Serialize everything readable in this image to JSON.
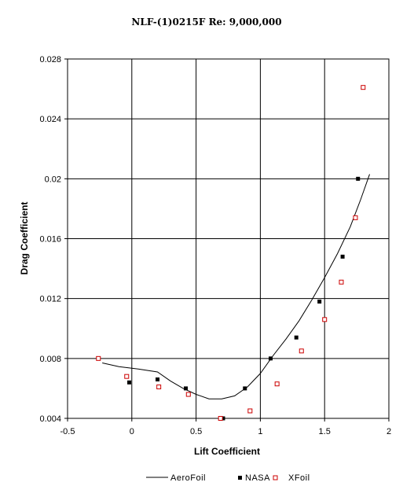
{
  "chart_data": {
    "type": "scatter",
    "title": "NLF-(1)0215F Re: 9,000,000",
    "xlabel": "Lift Coefficient",
    "ylabel": "Drag Coefficient",
    "xlim": [
      -0.5,
      2
    ],
    "ylim": [
      0.004,
      0.028
    ],
    "x_ticks": [
      -0.5,
      0,
      0.5,
      1,
      1.5,
      2
    ],
    "x_tick_labels": [
      "-0.5",
      "0",
      "0.5",
      "1",
      "1.5",
      "2"
    ],
    "y_ticks": [
      0.004,
      0.008,
      0.012,
      0.016,
      0.02,
      0.024,
      0.028
    ],
    "y_tick_labels": [
      "0.004",
      "0.008",
      "0.012",
      "0.016",
      "0.02",
      "0.024",
      "0.028"
    ],
    "grid": true,
    "legend_position": "bottom",
    "series": [
      {
        "name": "AeroFoil",
        "kind": "line",
        "color": "#000000",
        "points": [
          [
            -0.23,
            0.0077
          ],
          [
            -0.1,
            0.00745
          ],
          [
            0.05,
            0.0073
          ],
          [
            0.2,
            0.0071
          ],
          [
            0.3,
            0.0065
          ],
          [
            0.4,
            0.006
          ],
          [
            0.5,
            0.0056
          ],
          [
            0.6,
            0.0053
          ],
          [
            0.7,
            0.0053
          ],
          [
            0.8,
            0.0055
          ],
          [
            0.9,
            0.0061
          ],
          [
            1.0,
            0.007
          ],
          [
            1.1,
            0.0082
          ],
          [
            1.2,
            0.0093
          ],
          [
            1.3,
            0.0105
          ],
          [
            1.4,
            0.0119
          ],
          [
            1.5,
            0.0134
          ],
          [
            1.6,
            0.015
          ],
          [
            1.7,
            0.0168
          ],
          [
            1.78,
            0.0186
          ],
          [
            1.85,
            0.0203
          ]
        ]
      },
      {
        "name": "NASA",
        "kind": "marker",
        "marker": "filled-square",
        "color": "#000000",
        "points": [
          [
            -0.02,
            0.0064
          ],
          [
            0.2,
            0.0066
          ],
          [
            0.42,
            0.006
          ],
          [
            0.71,
            0.004
          ],
          [
            0.88,
            0.006
          ],
          [
            1.08,
            0.008
          ],
          [
            1.28,
            0.0094
          ],
          [
            1.46,
            0.0118
          ],
          [
            1.64,
            0.0148
          ],
          [
            1.76,
            0.02
          ]
        ]
      },
      {
        "name": "XFoil",
        "kind": "marker",
        "marker": "open-square",
        "color": "#cc0000",
        "points": [
          [
            -0.26,
            0.008
          ],
          [
            -0.04,
            0.0068
          ],
          [
            0.21,
            0.0061
          ],
          [
            0.44,
            0.0056
          ],
          [
            0.69,
            0.004
          ],
          [
            0.92,
            0.0045
          ],
          [
            1.13,
            0.0063
          ],
          [
            1.32,
            0.0085
          ],
          [
            1.5,
            0.0106
          ],
          [
            1.63,
            0.0131
          ],
          [
            1.74,
            0.0174
          ],
          [
            1.8,
            0.0261
          ]
        ]
      }
    ]
  }
}
